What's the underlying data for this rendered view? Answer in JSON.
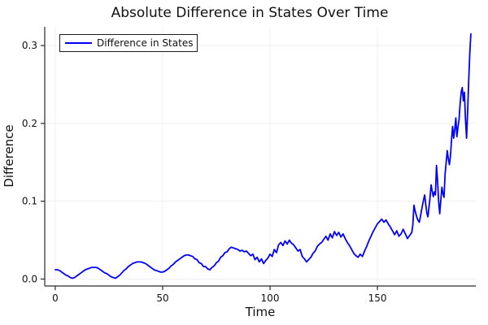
{
  "chart_data": {
    "type": "line",
    "title": "Absolute Difference in States Over Time",
    "xlabel": "Time",
    "ylabel": "Difference",
    "xlim": [
      -4.9,
      195.8
    ],
    "ylim": [
      -0.0089,
      0.3241
    ],
    "grid": true,
    "xticks": {
      "values": [
        0,
        50,
        100,
        150
      ],
      "labels": [
        "0",
        "50",
        "100",
        "150"
      ]
    },
    "yticks": {
      "values": [
        0.0,
        0.1,
        0.2,
        0.3
      ],
      "labels": [
        "0.0",
        "0.1",
        "0.2",
        "0.3"
      ]
    },
    "legend": {
      "position": "top-left",
      "entries": [
        {
          "label": "Difference in States",
          "color": "#0000ff"
        }
      ]
    },
    "colors": {
      "line": "#0000ff",
      "grid": "#f0f0f0",
      "axis": "#2a2a2a",
      "text": "#111111",
      "legend_border": "#1c1c1c",
      "background": "#ffffff"
    },
    "series": [
      {
        "name": "Difference in States",
        "color": "#0000ff",
        "points": [
          [
            0,
            0.012
          ],
          [
            1,
            0.012
          ],
          [
            2,
            0.011
          ],
          [
            3,
            0.009
          ],
          [
            4,
            0.007
          ],
          [
            5,
            0.005
          ],
          [
            6,
            0.004
          ],
          [
            7,
            0.002
          ],
          [
            8,
            0.001
          ],
          [
            9,
            0.002
          ],
          [
            10,
            0.004
          ],
          [
            11,
            0.006
          ],
          [
            12,
            0.008
          ],
          [
            13,
            0.01
          ],
          [
            14,
            0.012
          ],
          [
            15,
            0.013
          ],
          [
            16,
            0.014
          ],
          [
            17,
            0.015
          ],
          [
            18,
            0.015
          ],
          [
            19,
            0.015
          ],
          [
            20,
            0.014
          ],
          [
            21,
            0.012
          ],
          [
            22,
            0.01
          ],
          [
            23,
            0.008
          ],
          [
            24,
            0.007
          ],
          [
            25,
            0.005
          ],
          [
            26,
            0.003
          ],
          [
            27,
            0.002
          ],
          [
            28,
            0.001
          ],
          [
            29,
            0.003
          ],
          [
            30,
            0.005
          ],
          [
            31,
            0.008
          ],
          [
            32,
            0.011
          ],
          [
            33,
            0.013
          ],
          [
            34,
            0.016
          ],
          [
            35,
            0.018
          ],
          [
            36,
            0.02
          ],
          [
            37,
            0.021
          ],
          [
            38,
            0.022
          ],
          [
            39,
            0.022
          ],
          [
            40,
            0.022
          ],
          [
            41,
            0.021
          ],
          [
            42,
            0.02
          ],
          [
            43,
            0.018
          ],
          [
            44,
            0.016
          ],
          [
            45,
            0.014
          ],
          [
            46,
            0.012
          ],
          [
            47,
            0.011
          ],
          [
            48,
            0.01
          ],
          [
            49,
            0.009
          ],
          [
            50,
            0.009
          ],
          [
            51,
            0.01
          ],
          [
            52,
            0.012
          ],
          [
            53,
            0.014
          ],
          [
            54,
            0.017
          ],
          [
            55,
            0.019
          ],
          [
            56,
            0.022
          ],
          [
            57,
            0.024
          ],
          [
            58,
            0.026
          ],
          [
            59,
            0.028
          ],
          [
            60,
            0.03
          ],
          [
            61,
            0.031
          ],
          [
            62,
            0.031
          ],
          [
            63,
            0.03
          ],
          [
            64,
            0.029
          ],
          [
            65,
            0.026
          ],
          [
            66,
            0.025
          ],
          [
            67,
            0.021
          ],
          [
            68,
            0.02
          ],
          [
            69,
            0.016
          ],
          [
            70,
            0.016
          ],
          [
            71,
            0.013
          ],
          [
            72,
            0.012
          ],
          [
            73,
            0.015
          ],
          [
            74,
            0.017
          ],
          [
            75,
            0.021
          ],
          [
            76,
            0.023
          ],
          [
            77,
            0.028
          ],
          [
            78,
            0.03
          ],
          [
            79,
            0.034
          ],
          [
            80,
            0.035
          ],
          [
            81,
            0.039
          ],
          [
            82,
            0.041
          ],
          [
            83,
            0.04
          ],
          [
            84,
            0.039
          ],
          [
            85,
            0.038
          ],
          [
            86,
            0.036
          ],
          [
            87,
            0.037
          ],
          [
            88,
            0.035
          ],
          [
            89,
            0.036
          ],
          [
            90,
            0.033
          ],
          [
            91,
            0.03
          ],
          [
            92,
            0.032
          ],
          [
            93,
            0.025
          ],
          [
            94,
            0.028
          ],
          [
            95,
            0.022
          ],
          [
            96,
            0.026
          ],
          [
            97,
            0.02
          ],
          [
            98,
            0.024
          ],
          [
            99,
            0.027
          ],
          [
            100,
            0.032
          ],
          [
            101,
            0.029
          ],
          [
            102,
            0.038
          ],
          [
            103,
            0.034
          ],
          [
            104,
            0.044
          ],
          [
            105,
            0.047
          ],
          [
            106,
            0.043
          ],
          [
            107,
            0.049
          ],
          [
            108,
            0.045
          ],
          [
            109,
            0.05
          ],
          [
            110,
            0.046
          ],
          [
            111,
            0.044
          ],
          [
            112,
            0.04
          ],
          [
            113,
            0.036
          ],
          [
            114,
            0.038
          ],
          [
            115,
            0.029
          ],
          [
            116,
            0.026
          ],
          [
            117,
            0.022
          ],
          [
            118,
            0.025
          ],
          [
            119,
            0.028
          ],
          [
            120,
            0.033
          ],
          [
            121,
            0.036
          ],
          [
            122,
            0.042
          ],
          [
            123,
            0.045
          ],
          [
            124,
            0.047
          ],
          [
            125,
            0.051
          ],
          [
            126,
            0.055
          ],
          [
            127,
            0.05
          ],
          [
            128,
            0.058
          ],
          [
            129,
            0.053
          ],
          [
            130,
            0.061
          ],
          [
            131,
            0.056
          ],
          [
            132,
            0.06
          ],
          [
            133,
            0.054
          ],
          [
            134,
            0.058
          ],
          [
            135,
            0.052
          ],
          [
            136,
            0.047
          ],
          [
            137,
            0.043
          ],
          [
            138,
            0.038
          ],
          [
            139,
            0.033
          ],
          [
            140,
            0.03
          ],
          [
            141,
            0.028
          ],
          [
            142,
            0.032
          ],
          [
            143,
            0.029
          ],
          [
            144,
            0.036
          ],
          [
            145,
            0.042
          ],
          [
            146,
            0.049
          ],
          [
            147,
            0.055
          ],
          [
            148,
            0.061
          ],
          [
            149,
            0.066
          ],
          [
            150,
            0.071
          ],
          [
            151,
            0.074
          ],
          [
            152,
            0.077
          ],
          [
            153,
            0.073
          ],
          [
            154,
            0.076
          ],
          [
            155,
            0.071
          ],
          [
            156,
            0.067
          ],
          [
            157,
            0.062
          ],
          [
            158,
            0.057
          ],
          [
            159,
            0.062
          ],
          [
            160,
            0.055
          ],
          [
            161,
            0.058
          ],
          [
            162,
            0.064
          ],
          [
            163,
            0.058
          ],
          [
            164,
            0.052
          ],
          [
            165,
            0.056
          ],
          [
            166,
            0.06
          ],
          [
            166.5,
            0.07
          ],
          [
            167,
            0.095
          ],
          [
            167.5,
            0.088
          ],
          [
            168,
            0.083
          ],
          [
            168.5,
            0.078
          ],
          [
            169,
            0.075
          ],
          [
            169.5,
            0.073
          ],
          [
            170,
            0.08
          ],
          [
            170.5,
            0.088
          ],
          [
            171,
            0.095
          ],
          [
            171.5,
            0.102
          ],
          [
            172,
            0.108
          ],
          [
            172.5,
            0.096
          ],
          [
            173,
            0.085
          ],
          [
            173.5,
            0.08
          ],
          [
            174,
            0.092
          ],
          [
            174.5,
            0.105
          ],
          [
            175,
            0.121
          ],
          [
            175.5,
            0.113
          ],
          [
            176,
            0.106
          ],
          [
            176.5,
            0.112
          ],
          [
            177,
            0.108
          ],
          [
            177.5,
            0.146
          ],
          [
            178,
            0.126
          ],
          [
            178.5,
            0.1
          ],
          [
            179,
            0.084
          ],
          [
            179.5,
            0.101
          ],
          [
            180,
            0.118
          ],
          [
            180.5,
            0.11
          ],
          [
            181,
            0.105
          ],
          [
            181.5,
            0.135
          ],
          [
            182,
            0.15
          ],
          [
            182.5,
            0.165
          ],
          [
            183,
            0.155
          ],
          [
            183.5,
            0.147
          ],
          [
            184,
            0.158
          ],
          [
            184.5,
            0.179
          ],
          [
            185,
            0.196
          ],
          [
            185.5,
            0.181
          ],
          [
            186,
            0.192
          ],
          [
            186.5,
            0.207
          ],
          [
            187,
            0.183
          ],
          [
            187.5,
            0.195
          ],
          [
            188,
            0.205
          ],
          [
            188.5,
            0.225
          ],
          [
            189,
            0.24
          ],
          [
            189.5,
            0.246
          ],
          [
            190,
            0.229
          ],
          [
            190.5,
            0.24
          ],
          [
            191,
            0.205
          ],
          [
            191.5,
            0.181
          ],
          [
            192,
            0.215
          ],
          [
            192.5,
            0.255
          ],
          [
            193,
            0.29
          ],
          [
            193.5,
            0.315
          ]
        ]
      }
    ]
  }
}
